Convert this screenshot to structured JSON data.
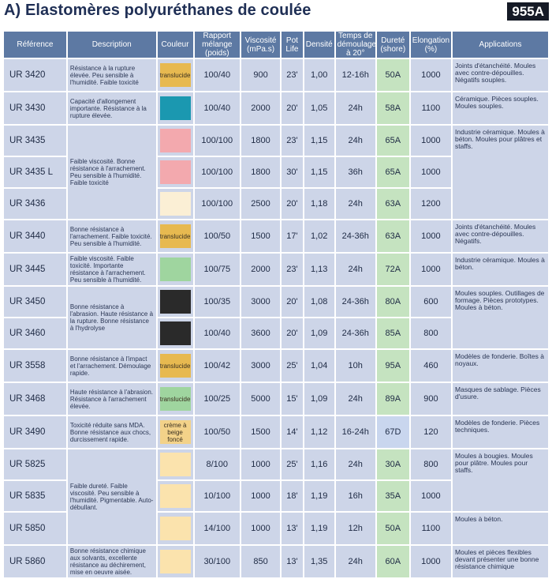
{
  "title": "A) Elastomères polyuréthanes de coulée",
  "badge": "955A",
  "columns": {
    "reference": "Référence",
    "description": "Description",
    "color": "Couleur",
    "ratio": "Rapport mélange (poids)",
    "viscosity": "Viscosité (mPa.s)",
    "potlife": "Pot Life",
    "density": "Densité",
    "demold": "Temps de démoulage à 20°",
    "hardness": "Dureté (shore)",
    "elongation": "Elongation (%)",
    "applications": "Applications"
  },
  "colors": {
    "header_bg": "#5d79a3",
    "cell_bg": "#cdd5e8",
    "hardness_bg": "#c5e3c0",
    "translucent": "#e7b950",
    "teal": "#1b98b0",
    "pink": "#f3a9ae",
    "cream": "#fbefd5",
    "green": "#9fd59f",
    "black": "#2a2a2a",
    "beige": "#f3d289",
    "light_beige": "#fbe3ad"
  },
  "rows": [
    {
      "ref": "UR 3420",
      "ratio": "100/40",
      "viscosity": "900",
      "potlife": "23'",
      "density": "1,00",
      "demold": "12-16h",
      "hardness": "50A",
      "elongation": "1000"
    },
    {
      "ref": "UR 3430",
      "ratio": "100/40",
      "viscosity": "2000",
      "potlife": "20'",
      "density": "1,05",
      "demold": "24h",
      "hardness": "58A",
      "elongation": "1100"
    },
    {
      "ref": "UR 3435",
      "ratio": "100/100",
      "viscosity": "1800",
      "potlife": "23'",
      "density": "1,15",
      "demold": "24h",
      "hardness": "65A",
      "elongation": "1000"
    },
    {
      "ref": "UR 3435 L",
      "ratio": "100/100",
      "viscosity": "1800",
      "potlife": "30'",
      "density": "1,15",
      "demold": "36h",
      "hardness": "65A",
      "elongation": "1000"
    },
    {
      "ref": "UR 3436",
      "ratio": "100/100",
      "viscosity": "2500",
      "potlife": "20'",
      "density": "1,18",
      "demold": "24h",
      "hardness": "63A",
      "elongation": "1200"
    },
    {
      "ref": "UR 3440",
      "ratio": "100/50",
      "viscosity": "1500",
      "potlife": "17'",
      "density": "1,02",
      "demold": "24-36h",
      "hardness": "63A",
      "elongation": "1000"
    },
    {
      "ref": "UR 3445",
      "ratio": "100/75",
      "viscosity": "2000",
      "potlife": "23'",
      "density": "1,13",
      "demold": "24h",
      "hardness": "72A",
      "elongation": "1000"
    },
    {
      "ref": "UR 3450",
      "ratio": "100/35",
      "viscosity": "3000",
      "potlife": "20'",
      "density": "1,08",
      "demold": "24-36h",
      "hardness": "80A",
      "elongation": "600"
    },
    {
      "ref": "UR 3460",
      "ratio": "100/40",
      "viscosity": "3600",
      "potlife": "20'",
      "density": "1,09",
      "demold": "24-36h",
      "hardness": "85A",
      "elongation": "800"
    },
    {
      "ref": "UR 3558",
      "ratio": "100/42",
      "viscosity": "3000",
      "potlife": "25'",
      "density": "1,04",
      "demold": "10h",
      "hardness": "95A",
      "elongation": "460"
    },
    {
      "ref": "UR 3468",
      "ratio": "100/25",
      "viscosity": "5000",
      "potlife": "15'",
      "density": "1,09",
      "demold": "24h",
      "hardness": "89A",
      "elongation": "900"
    },
    {
      "ref": "UR 3490",
      "ratio": "100/50",
      "viscosity": "1500",
      "potlife": "14'",
      "density": "1,12",
      "demold": "16-24h",
      "hardness": "67D",
      "elongation": "120"
    },
    {
      "ref": "UR 5825",
      "ratio": "8/100",
      "viscosity": "1000",
      "potlife": "25'",
      "density": "1,16",
      "demold": "24h",
      "hardness": "30A",
      "elongation": "800"
    },
    {
      "ref": "UR 5835",
      "ratio": "10/100",
      "viscosity": "1000",
      "potlife": "18'",
      "density": "1,19",
      "demold": "16h",
      "hardness": "35A",
      "elongation": "1000"
    },
    {
      "ref": "UR 5850",
      "ratio": "14/100",
      "viscosity": "1000",
      "potlife": "13'",
      "density": "1,19",
      "demold": "12h",
      "hardness": "50A",
      "elongation": "1100"
    },
    {
      "ref": "UR 5860",
      "ratio": "30/100",
      "viscosity": "850",
      "potlife": "13'",
      "density": "1,35",
      "demold": "24h",
      "hardness": "60A",
      "elongation": "1000"
    }
  ],
  "descriptions": {
    "d3420": "Résistance à la rupture élevée. Peu sensible à l'humidité. Faible toxicité",
    "d3430": "Capacité d'allongement importante. Résistance à la rupture élevée.",
    "d3435": "Faible viscosité. Bonne résistance à l'arrachement. Peu sensible à l'humidité. Faible toxicité",
    "d3440": "Bonne résistance à l'arrachement. Faible toxicité. Peu sensible à l'humidité.",
    "d3445": "Faible viscosité. Faible toxicité. Importante résistance à l'arrachement. Peu sensible à l'humidité.",
    "d3450": "Bonne résistance à l'abrasion. Haute résistance à la rupture. Bonne résistance à l'hydrolyse",
    "d3558": "Bonne résistance à l'impact et l'arrachement. Démoulage rapide.",
    "d3468": "Haute résistance à l'abrasion. Résistance à l'arrachement élevée.",
    "d3490": "Toxicité réduite sans MDA. Bonne résistance aux chocs, durcissement rapide.",
    "d5825": "Faible dureté. Faible viscosité. Peu sensible à l'humidité. Pigmentable. Auto-débullant.",
    "d5860": "Bonne résistance chimique aux solvants, excellente résistance au déchirement, mise en oeuvre aisée."
  },
  "color_labels": {
    "translucent": "translucide",
    "beige": "crème à beige foncé"
  },
  "applications": {
    "a3420": "Joints d'étanchéité. Moules avec contre-dépouilles. Négatifs souples.",
    "a3430": "Céramique. Pièces souples. Moules souples.",
    "a3435": "Industrie céramique. Moules à béton. Moules pour plâtres et staffs.",
    "a3440": "Joints d'étanchéité. Moules avec contre-dépouilles. Négatifs.",
    "a3445": "Industrie céramique. Moules à béton.",
    "a3450": "Moules souples. Outillages de formage. Pièces prototypes. Moules à béton.",
    "a3558": "Modèles de fonderie. Boîtes à noyaux.",
    "a3468": "Masques de sablage. Pièces d'usure.",
    "a3490": "Modèles de fonderie. Pièces techniques.",
    "a5825": "Moules à bougies. Moules pour plâtre. Moules pour staffs.",
    "a5850": "Moules à béton.",
    "a5860": "Moules et pièces flexibles devant présenter une bonne résistance chimique"
  }
}
